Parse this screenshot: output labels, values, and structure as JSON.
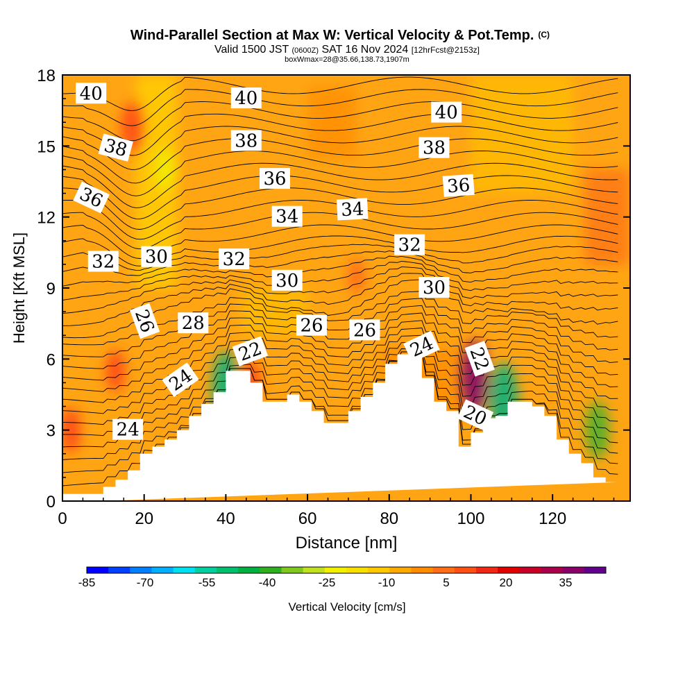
{
  "chart_data": {
    "type": "heatmap",
    "title": "Wind-Parallel Section at Max W: Vertical Velocity & Pot.Temp.",
    "title_mark": "(C)",
    "subtitle": {
      "lead": "Valid 1500 JST",
      "utc": "(0600Z)",
      "date": "SAT 16 Nov 2024",
      "forecast": "[12hrFcst@2153z]"
    },
    "subtitle2": "boxWmax=28@35.66,138.73,1907m",
    "xlabel": "Distance [nm]",
    "ylabel": "Height [Kft MSL]",
    "xlim": [
      0,
      139
    ],
    "ylim": [
      0,
      18
    ],
    "xticks": [
      "0",
      "20",
      "40",
      "60",
      "80",
      "100",
      "120"
    ],
    "yticks": [
      "0",
      "3",
      "6",
      "9",
      "12",
      "15",
      "18"
    ],
    "grid": false,
    "colorbar": {
      "label": "Vertical Velocity [cm/s]",
      "ticks": [
        "-85",
        "-70",
        "-55",
        "-40",
        "-25",
        "-10",
        "5",
        "20",
        "35"
      ],
      "colors": [
        "#0000ff",
        "#0040ff",
        "#0080ff",
        "#00b0ff",
        "#00e0f0",
        "#00d0a0",
        "#00c070",
        "#00b040",
        "#30b020",
        "#80c820",
        "#c0e020",
        "#f0f000",
        "#f8e000",
        "#ffc800",
        "#ffaa00",
        "#ff8c00",
        "#ff6e14",
        "#ff5014",
        "#f02814",
        "#e00000",
        "#c80028",
        "#a8004a",
        "#880068",
        "#60008c"
      ]
    },
    "terrain_profile": {
      "x": [
        0,
        10,
        10,
        13,
        13,
        16,
        16,
        19,
        19,
        22,
        22,
        25,
        25,
        28,
        28,
        31,
        31,
        34,
        34,
        37,
        37,
        40,
        40,
        46,
        46,
        49,
        49,
        52,
        52,
        55,
        55,
        58,
        58,
        61,
        61,
        64,
        64,
        70,
        70,
        73,
        73,
        76,
        76,
        79,
        79,
        82,
        82,
        85,
        85,
        88,
        88,
        91,
        91,
        94,
        94,
        97,
        97,
        100,
        100,
        103,
        103,
        106,
        106,
        109,
        109,
        115,
        115,
        118,
        118,
        121,
        121,
        124,
        124,
        127,
        127,
        130,
        130,
        133,
        133,
        136,
        136,
        139
      ],
      "h": [
        0.3,
        0.3,
        0.6,
        0.6,
        0.9,
        0.9,
        1.3,
        1.3,
        2.0,
        2.0,
        2.3,
        2.3,
        2.6,
        2.6,
        3.0,
        3.0,
        3.6,
        3.6,
        4.1,
        4.1,
        4.6,
        4.6,
        5.5,
        5.5,
        5.0,
        5.0,
        4.2,
        4.2,
        4.2,
        4.2,
        4.5,
        4.5,
        4.2,
        4.2,
        3.8,
        3.8,
        3.3,
        3.3,
        3.8,
        3.8,
        4.4,
        4.4,
        5.0,
        5.0,
        5.8,
        5.8,
        6.2,
        6.2,
        6.2,
        6.2,
        5.2,
        5.2,
        4.2,
        4.2,
        3.8,
        3.8,
        2.3,
        2.3,
        2.9,
        2.9,
        3.5,
        3.5,
        3.6,
        3.6,
        4.2,
        4.2,
        4.0,
        4.0,
        3.6,
        3.6,
        2.6,
        2.6,
        2.0,
        2.0,
        1.6,
        1.6,
        1.0,
        1.0,
        0.8,
        0.8
      ]
    },
    "wind_features": [
      {
        "x": 13,
        "h": 5.5,
        "w": 10
      },
      {
        "x": 17,
        "h": 15.8,
        "w": 15
      },
      {
        "x": 46,
        "h": 5.0,
        "w": 12
      },
      {
        "x": 101,
        "h": 5.2,
        "w": 30
      },
      {
        "x": 108,
        "h": 4.2,
        "w": -32
      },
      {
        "x": 40,
        "h": 4.8,
        "w": -28
      },
      {
        "x": 131,
        "h": 3.0,
        "w": -20
      },
      {
        "x": 25,
        "h": 14.0,
        "w": -11
      },
      {
        "x": 72,
        "h": 9.5,
        "w": 6
      },
      {
        "x": 2,
        "h": 3.0,
        "w": 12
      }
    ],
    "theta_labels": [
      {
        "x": 7,
        "h": 17.2,
        "text": "40",
        "rot": 0
      },
      {
        "x": 45,
        "h": 17.0,
        "text": "40",
        "rot": 0
      },
      {
        "x": 94,
        "h": 16.4,
        "text": "40",
        "rot": 0
      },
      {
        "x": 13,
        "h": 14.9,
        "text": "38",
        "rot": 15
      },
      {
        "x": 45,
        "h": 15.2,
        "text": "38",
        "rot": 0
      },
      {
        "x": 91,
        "h": 14.9,
        "text": "38",
        "rot": 0
      },
      {
        "x": 7,
        "h": 12.8,
        "text": "36",
        "rot": 25
      },
      {
        "x": 52,
        "h": 13.6,
        "text": "36",
        "rot": 0
      },
      {
        "x": 97,
        "h": 13.3,
        "text": "36",
        "rot": -4
      },
      {
        "x": 55,
        "h": 12.0,
        "text": "34",
        "rot": 0
      },
      {
        "x": 71,
        "h": 12.3,
        "text": "34",
        "rot": -3
      },
      {
        "x": 10,
        "h": 10.1,
        "text": "32",
        "rot": 0
      },
      {
        "x": 42,
        "h": 10.2,
        "text": "32",
        "rot": 0
      },
      {
        "x": 85,
        "h": 10.8,
        "text": "32",
        "rot": 0
      },
      {
        "x": 23,
        "h": 10.3,
        "text": "30",
        "rot": 0
      },
      {
        "x": 55,
        "h": 9.3,
        "text": "30",
        "rot": 0
      },
      {
        "x": 91,
        "h": 9.0,
        "text": "30",
        "rot": 0
      },
      {
        "x": 20,
        "h": 7.6,
        "text": "26",
        "rot": 70
      },
      {
        "x": 32,
        "h": 7.5,
        "text": "28",
        "rot": 0
      },
      {
        "x": 61,
        "h": 7.4,
        "text": "26",
        "rot": 0
      },
      {
        "x": 74,
        "h": 7.2,
        "text": "26",
        "rot": 0
      },
      {
        "x": 29,
        "h": 5.1,
        "text": "24",
        "rot": -35
      },
      {
        "x": 16,
        "h": 3.0,
        "text": "24",
        "rot": 0
      },
      {
        "x": 46,
        "h": 6.3,
        "text": "22",
        "rot": -20
      },
      {
        "x": 88,
        "h": 6.5,
        "text": "24",
        "rot": -25
      },
      {
        "x": 102,
        "h": 6.0,
        "text": "22",
        "rot": 70
      },
      {
        "x": 101,
        "h": 3.6,
        "text": "20",
        "rot": 25
      }
    ]
  }
}
